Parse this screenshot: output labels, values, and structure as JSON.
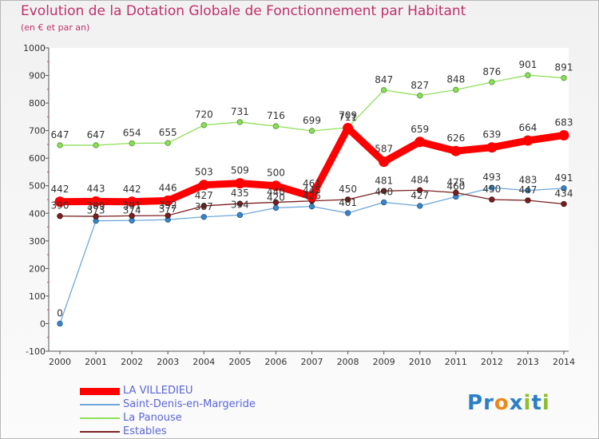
{
  "title": "Evolution de la Dotation Globale de Fonctionnement par Habitant",
  "subtitle": "(en € et par an)",
  "logo": {
    "text": "Proxiti",
    "letters": [
      {
        "ch": "P",
        "color": "#2a7fc6"
      },
      {
        "ch": "r",
        "color": "#2a7fc6"
      },
      {
        "ch": "o",
        "color": "#e98a1c"
      },
      {
        "ch": "x",
        "color": "#2a7fc6"
      },
      {
        "ch": "i",
        "color": "#8cbf2a"
      },
      {
        "ch": "t",
        "color": "#2a7fc6"
      },
      {
        "ch": "i",
        "color": "#8cbf2a"
      }
    ]
  },
  "chart_data": {
    "type": "line",
    "title": "Evolution de la Dotation Globale de Fonctionnement par Habitant",
    "subtitle": "(en € et par an)",
    "x": [
      "2000",
      "2001",
      "2002",
      "2003",
      "2004",
      "2005",
      "2006",
      "2007",
      "2008",
      "2009",
      "2010",
      "2011",
      "2012",
      "2013",
      "2014"
    ],
    "ylim": [
      -100,
      1000
    ],
    "yticks": [
      -100,
      0,
      100,
      200,
      300,
      400,
      500,
      600,
      700,
      800,
      900,
      1000
    ],
    "grid": false,
    "legend_position": "bottom-left",
    "series": [
      {
        "name": "LA VILLEDIEU",
        "color": "#ff0000",
        "values": [
          442,
          443,
          442,
          446,
          503,
          509,
          500,
          461,
          709,
          587,
          659,
          626,
          639,
          664,
          683
        ],
        "labels": [
          "442",
          "443",
          "442",
          "446",
          "503",
          "509",
          "500",
          "461",
          "709",
          "587",
          "659",
          "626",
          "639",
          "664",
          "683"
        ]
      },
      {
        "name": "Saint-Denis-en-Margeride",
        "color": "#6fa8dc",
        "values": [
          0,
          373,
          374,
          377,
          387,
          394,
          420,
          425,
          401,
          440,
          427,
          460,
          493,
          483,
          491
        ],
        "labels": [
          "0",
          "373",
          "374",
          "377",
          "387",
          "394",
          "420",
          "425",
          "401",
          "440",
          "427",
          "460",
          "493",
          "483",
          "491"
        ]
      },
      {
        "name": "La Panouse",
        "color": "#8ee05a",
        "values": [
          647,
          647,
          654,
          655,
          720,
          731,
          716,
          699,
          711,
          847,
          827,
          848,
          876,
          901,
          891
        ],
        "labels": [
          "647",
          "647",
          "654",
          "655",
          "720",
          "731",
          "716",
          "699",
          "711",
          "847",
          "827",
          "848",
          "876",
          "901",
          "891"
        ]
      },
      {
        "name": "Estables",
        "color": "#7a2020",
        "values": [
          390,
          389,
          391,
          392,
          427,
          435,
          440,
          445,
          450,
          481,
          484,
          475,
          450,
          447,
          434
        ],
        "labels": [
          "390",
          "389",
          "391",
          "392",
          "427",
          "435",
          "440",
          "445",
          "450",
          "481",
          "484",
          "475",
          "450",
          "447",
          "434"
        ]
      }
    ]
  }
}
